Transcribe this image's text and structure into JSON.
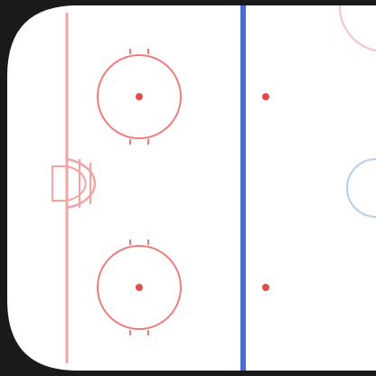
{
  "rink": {
    "zone": "left-end-zone",
    "colors": {
      "background": "#1a1a1a",
      "ice": "#ffffff",
      "goal_line": "#f4a3a3",
      "faceoff_circle": "#ef7c7c",
      "faceoff_dot": "#e24b4b",
      "blue_line": "#4a6fd0",
      "crease": "#f4a3a3",
      "center_circle": "#b9cdf0",
      "edge_circle": "#f6c2c2"
    },
    "icons": {
      "faceoff_circle_top": "faceoff-circle-icon",
      "faceoff_circle_bottom": "faceoff-circle-icon",
      "goal_crease": "goal-crease-icon",
      "blue_line": "blue-line-icon"
    }
  }
}
